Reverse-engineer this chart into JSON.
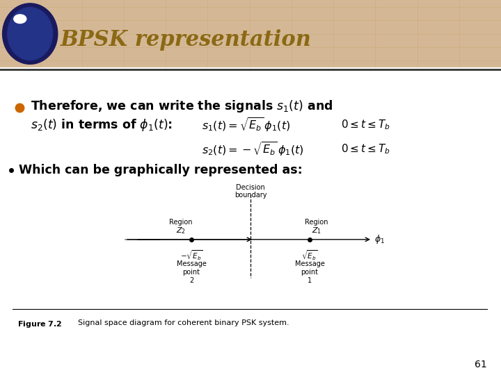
{
  "title": "BPSK representation",
  "title_color": "#8B6914",
  "title_fontsize": 22,
  "bg_color": "#FFFFFF",
  "header_bg": "#D4B896",
  "slide_number": "61",
  "figure_caption_bold": "Figure 7.2",
  "figure_caption_rest": "  Signal space diagram for coherent binary PSK system."
}
